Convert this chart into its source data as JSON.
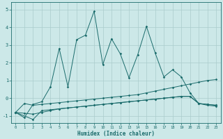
{
  "xlabel": "Humidex (Indice chaleur)",
  "bg_color": "#cce8e8",
  "grid_color": "#aacccc",
  "line_color": "#1a6b6b",
  "ylim": [
    -1.4,
    5.4
  ],
  "xlim": [
    -0.5,
    23.5
  ],
  "yticks": [
    -1,
    0,
    1,
    2,
    3,
    4,
    5
  ],
  "xticks": [
    0,
    1,
    2,
    3,
    4,
    5,
    6,
    7,
    8,
    9,
    10,
    11,
    12,
    13,
    14,
    15,
    16,
    17,
    18,
    19,
    20,
    21,
    22,
    23
  ],
  "line1_x": [
    0,
    1,
    2,
    3,
    4,
    5,
    6,
    7,
    8,
    9,
    10,
    11,
    12,
    13,
    14,
    15,
    16,
    17,
    18,
    19,
    20,
    21,
    22,
    23
  ],
  "line1_y": [
    -0.8,
    -1.1,
    -0.35,
    -0.2,
    0.65,
    2.8,
    0.65,
    3.3,
    3.55,
    4.9,
    1.9,
    3.35,
    2.5,
    1.15,
    2.45,
    4.05,
    2.55,
    1.2,
    1.6,
    1.2,
    0.3,
    -0.3,
    -0.35,
    -0.4
  ],
  "line2_x": [
    0,
    1,
    2,
    3,
    4,
    5,
    6,
    7,
    8,
    9,
    10,
    11,
    12,
    13,
    14,
    15,
    16,
    17,
    18,
    19,
    20,
    21,
    22,
    23
  ],
  "line2_y": [
    -0.8,
    -0.3,
    -0.4,
    -0.35,
    -0.3,
    -0.25,
    -0.2,
    -0.15,
    -0.1,
    -0.05,
    0.0,
    0.05,
    0.1,
    0.15,
    0.2,
    0.3,
    0.4,
    0.5,
    0.6,
    0.7,
    0.8,
    0.9,
    1.0,
    1.05
  ],
  "line3_x": [
    0,
    1,
    2,
    3,
    4,
    5,
    6,
    7,
    8,
    9,
    10,
    11,
    12,
    13,
    14,
    15,
    16,
    17,
    18,
    19,
    20,
    21,
    22,
    23
  ],
  "line3_y": [
    -0.8,
    -0.85,
    -0.9,
    -0.8,
    -0.7,
    -0.6,
    -0.55,
    -0.5,
    -0.45,
    -0.4,
    -0.35,
    -0.3,
    -0.25,
    -0.2,
    -0.15,
    -0.1,
    -0.05,
    0.0,
    0.05,
    0.1,
    0.1,
    -0.3,
    -0.35,
    -0.4
  ],
  "line4_x": [
    0,
    2,
    3,
    4,
    5,
    6,
    7,
    8,
    9,
    10,
    11,
    12,
    13,
    14,
    15,
    16,
    17,
    18,
    19,
    20,
    21,
    22,
    23
  ],
  "line4_y": [
    -0.8,
    -1.2,
    -0.7,
    -0.65,
    -0.6,
    -0.55,
    -0.5,
    -0.45,
    -0.4,
    -0.35,
    -0.3,
    -0.25,
    -0.2,
    -0.15,
    -0.1,
    -0.05,
    0.0,
    0.05,
    0.1,
    0.1,
    -0.3,
    -0.4,
    -0.45
  ]
}
